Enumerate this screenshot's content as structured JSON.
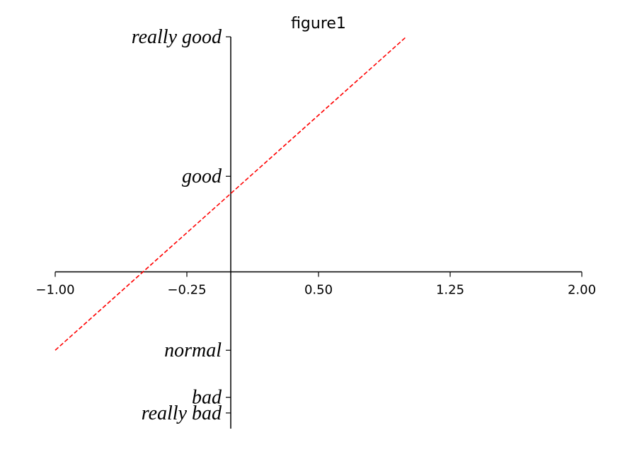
{
  "chart_data": {
    "type": "line",
    "title": "figure1",
    "xlabel": "",
    "ylabel": "",
    "xlim": [
      -1.0,
      2.0
    ],
    "ylim": [
      -2.0,
      3.0
    ],
    "x_ticks": [
      {
        "value": -1.0,
        "label": "−1.00"
      },
      {
        "value": -0.25,
        "label": "−0.25"
      },
      {
        "value": 0.5,
        "label": "0.50"
      },
      {
        "value": 1.25,
        "label": "1.25"
      },
      {
        "value": 2.0,
        "label": "2.00"
      }
    ],
    "y_ticks": [
      {
        "value": -1.8,
        "label": "really bad"
      },
      {
        "value": -1.6,
        "label": "bad"
      },
      {
        "value": -1.0,
        "label": "normal"
      },
      {
        "value": 1.22,
        "label": "good"
      },
      {
        "value": 3.0,
        "label": "really good"
      }
    ],
    "spines": {
      "x_at": 0,
      "y_at": 0,
      "top": false,
      "right": false
    },
    "grid": false,
    "series": [
      {
        "x": [
          -1.0,
          1.0
        ],
        "y": [
          -1.0,
          3.0
        ],
        "color": "#ff0000",
        "linestyle": "dashed"
      }
    ]
  }
}
